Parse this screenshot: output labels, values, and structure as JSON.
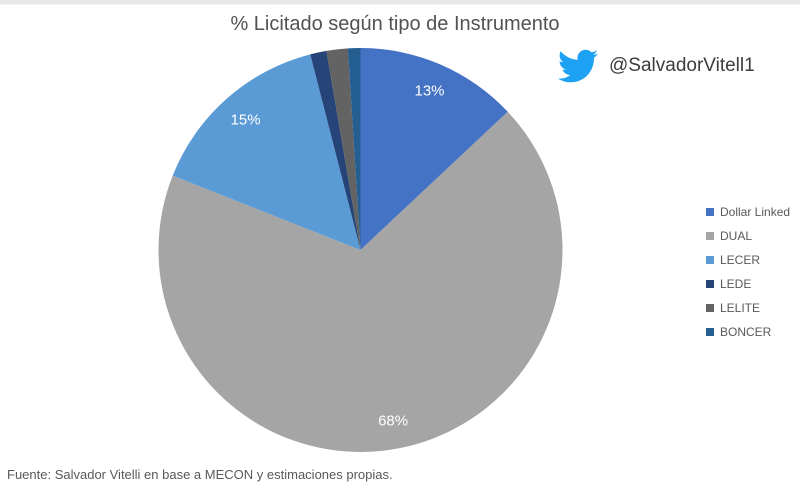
{
  "page": {
    "background": "#ffffff",
    "top_strip_color": "#e8e8e8"
  },
  "header": {
    "twitter_handle": "@SalvadorVitell1",
    "twitter_icon_color": "#1da1f2"
  },
  "chart_data": {
    "type": "pie",
    "title": "% Licitado según tipo de Instrumento",
    "legend_position": "right",
    "start_angle_deg": 0,
    "direction": "clockwise",
    "label_color": "#ffffff",
    "slices": [
      {
        "name": "Dollar Linked",
        "value": 13,
        "label": "13%",
        "color": "#4472c4"
      },
      {
        "name": "DUAL",
        "value": 68,
        "label": "68%",
        "color": "#a5a5a5"
      },
      {
        "name": "LECER",
        "value": 15,
        "label": "15%",
        "color": "#5b9bd5"
      },
      {
        "name": "LEDE",
        "value": 1.3,
        "label": "",
        "color": "#264478"
      },
      {
        "name": "LELITE",
        "value": 1.7,
        "label": "",
        "color": "#636363"
      },
      {
        "name": "BONCER",
        "value": 1,
        "label": "",
        "color": "#255e91"
      }
    ]
  },
  "footer": {
    "source": "Fuente: Salvador Vitelli en base a MECON y estimaciones propias."
  }
}
